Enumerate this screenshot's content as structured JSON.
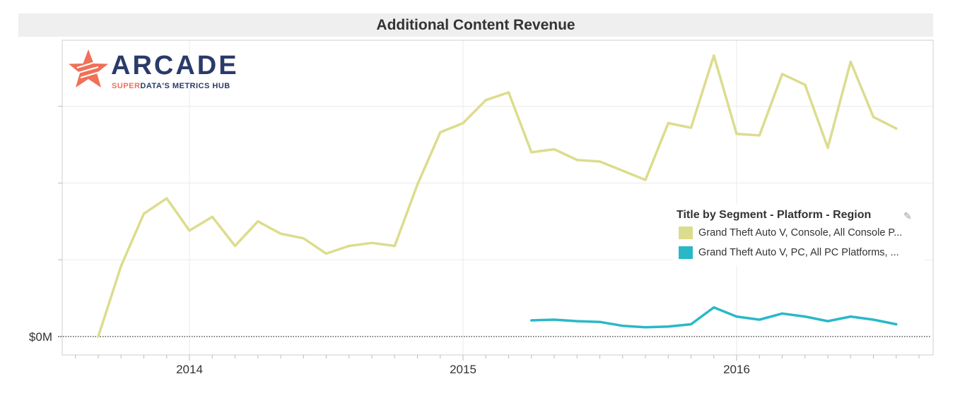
{
  "chart_data": {
    "type": "line",
    "title": "Additional Content Revenue",
    "x_ticks": [
      "2014",
      "2015",
      "2016"
    ],
    "y_ticks": [
      "$0M"
    ],
    "legend_placement": "right",
    "grid": true,
    "series": [
      {
        "name": "Grand Theft Auto V, Console, All Console P...",
        "color": "#dcdc8e",
        "x": [
          "2013-09",
          "2013-10",
          "2013-11",
          "2013-12",
          "2014-01",
          "2014-02",
          "2014-03",
          "2014-04",
          "2014-05",
          "2014-06",
          "2014-07",
          "2014-08",
          "2014-09",
          "2014-10",
          "2014-11",
          "2014-12",
          "2015-01",
          "2015-02",
          "2015-03",
          "2015-04",
          "2015-05",
          "2015-06",
          "2015-07",
          "2015-08",
          "2015-09",
          "2015-10",
          "2015-11",
          "2015-12",
          "2016-01",
          "2016-02",
          "2016-03",
          "2016-04",
          "2016-05",
          "2016-06",
          "2016-07",
          "2016-08"
        ],
        "values": [
          0,
          9.2,
          16,
          18,
          13.8,
          15.6,
          11.8,
          15,
          13.4,
          12.8,
          10.8,
          11.8,
          12.2,
          11.8,
          19.8,
          26.6,
          27.8,
          30.8,
          31.8,
          24,
          24.4,
          23,
          22.8,
          21.6,
          20.4,
          27.8,
          27.2,
          36.6,
          26.4,
          26.2,
          34.2,
          32.8,
          24.6,
          35.8,
          28.6,
          27.1
        ]
      },
      {
        "name": "Grand Theft Auto V, PC, All PC Platforms, ...",
        "color": "#2ab8c8",
        "x": [
          "2015-04",
          "2015-05",
          "2015-06",
          "2015-07",
          "2015-08",
          "2015-09",
          "2015-10",
          "2015-11",
          "2015-12",
          "2016-01",
          "2016-02",
          "2016-03",
          "2016-04",
          "2016-05",
          "2016-06",
          "2016-07",
          "2016-08"
        ],
        "values": [
          2.1,
          2.2,
          2.0,
          1.9,
          1.4,
          1.2,
          1.3,
          1.6,
          3.8,
          2.6,
          2.2,
          3.0,
          2.6,
          2.0,
          2.6,
          2.2,
          1.6
        ]
      }
    ],
    "ylim": [
      -2.4,
      38.6
    ]
  },
  "legend": {
    "title": "Title by Segment - Platform - Region",
    "edit_icon": "pencil-icon"
  },
  "logo": {
    "word": "ARCADE",
    "sub_accent": "SUPER",
    "sub_rest": "DATA'S METRICS HUB",
    "colors": {
      "star": "#f07058",
      "text": "#2a3a6b"
    }
  }
}
